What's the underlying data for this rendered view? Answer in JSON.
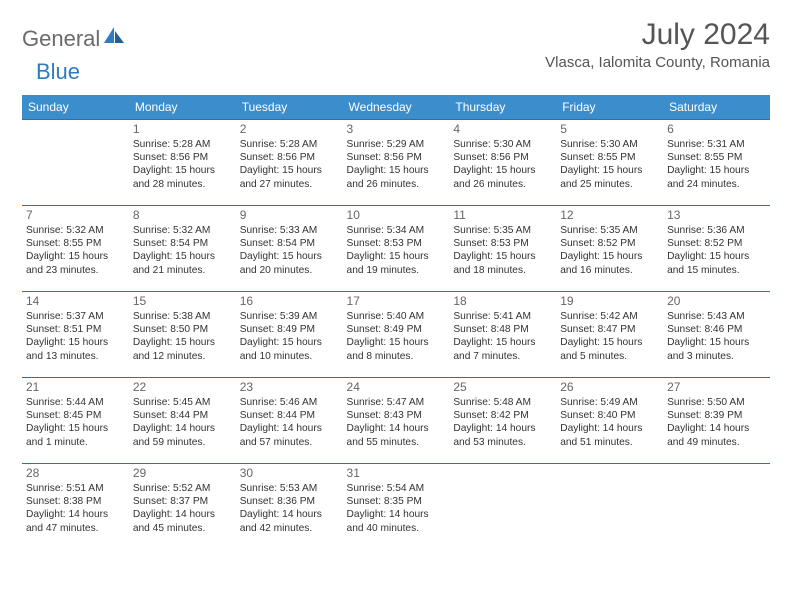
{
  "logo": {
    "general": "General",
    "blue": "Blue"
  },
  "title": "July 2024",
  "location": "Vlasca, Ialomita County, Romania",
  "colors": {
    "header_bg": "#3c8dcc",
    "header_text": "#ffffff",
    "border": "#2f6fa6",
    "logo_gray": "#6a6a6a",
    "logo_blue": "#2f7bbf",
    "text": "#333333",
    "daynum": "#666666",
    "title_text": "#555555"
  },
  "weekdays": [
    "Sunday",
    "Monday",
    "Tuesday",
    "Wednesday",
    "Thursday",
    "Friday",
    "Saturday"
  ],
  "weeks": [
    [
      null,
      {
        "n": "1",
        "sr": "5:28 AM",
        "ss": "8:56 PM",
        "dl": "15 hours and 28 minutes."
      },
      {
        "n": "2",
        "sr": "5:28 AM",
        "ss": "8:56 PM",
        "dl": "15 hours and 27 minutes."
      },
      {
        "n": "3",
        "sr": "5:29 AM",
        "ss": "8:56 PM",
        "dl": "15 hours and 26 minutes."
      },
      {
        "n": "4",
        "sr": "5:30 AM",
        "ss": "8:56 PM",
        "dl": "15 hours and 26 minutes."
      },
      {
        "n": "5",
        "sr": "5:30 AM",
        "ss": "8:55 PM",
        "dl": "15 hours and 25 minutes."
      },
      {
        "n": "6",
        "sr": "5:31 AM",
        "ss": "8:55 PM",
        "dl": "15 hours and 24 minutes."
      }
    ],
    [
      {
        "n": "7",
        "sr": "5:32 AM",
        "ss": "8:55 PM",
        "dl": "15 hours and 23 minutes."
      },
      {
        "n": "8",
        "sr": "5:32 AM",
        "ss": "8:54 PM",
        "dl": "15 hours and 21 minutes."
      },
      {
        "n": "9",
        "sr": "5:33 AM",
        "ss": "8:54 PM",
        "dl": "15 hours and 20 minutes."
      },
      {
        "n": "10",
        "sr": "5:34 AM",
        "ss": "8:53 PM",
        "dl": "15 hours and 19 minutes."
      },
      {
        "n": "11",
        "sr": "5:35 AM",
        "ss": "8:53 PM",
        "dl": "15 hours and 18 minutes."
      },
      {
        "n": "12",
        "sr": "5:35 AM",
        "ss": "8:52 PM",
        "dl": "15 hours and 16 minutes."
      },
      {
        "n": "13",
        "sr": "5:36 AM",
        "ss": "8:52 PM",
        "dl": "15 hours and 15 minutes."
      }
    ],
    [
      {
        "n": "14",
        "sr": "5:37 AM",
        "ss": "8:51 PM",
        "dl": "15 hours and 13 minutes."
      },
      {
        "n": "15",
        "sr": "5:38 AM",
        "ss": "8:50 PM",
        "dl": "15 hours and 12 minutes."
      },
      {
        "n": "16",
        "sr": "5:39 AM",
        "ss": "8:49 PM",
        "dl": "15 hours and 10 minutes."
      },
      {
        "n": "17",
        "sr": "5:40 AM",
        "ss": "8:49 PM",
        "dl": "15 hours and 8 minutes."
      },
      {
        "n": "18",
        "sr": "5:41 AM",
        "ss": "8:48 PM",
        "dl": "15 hours and 7 minutes."
      },
      {
        "n": "19",
        "sr": "5:42 AM",
        "ss": "8:47 PM",
        "dl": "15 hours and 5 minutes."
      },
      {
        "n": "20",
        "sr": "5:43 AM",
        "ss": "8:46 PM",
        "dl": "15 hours and 3 minutes."
      }
    ],
    [
      {
        "n": "21",
        "sr": "5:44 AM",
        "ss": "8:45 PM",
        "dl": "15 hours and 1 minute."
      },
      {
        "n": "22",
        "sr": "5:45 AM",
        "ss": "8:44 PM",
        "dl": "14 hours and 59 minutes."
      },
      {
        "n": "23",
        "sr": "5:46 AM",
        "ss": "8:44 PM",
        "dl": "14 hours and 57 minutes."
      },
      {
        "n": "24",
        "sr": "5:47 AM",
        "ss": "8:43 PM",
        "dl": "14 hours and 55 minutes."
      },
      {
        "n": "25",
        "sr": "5:48 AM",
        "ss": "8:42 PM",
        "dl": "14 hours and 53 minutes."
      },
      {
        "n": "26",
        "sr": "5:49 AM",
        "ss": "8:40 PM",
        "dl": "14 hours and 51 minutes."
      },
      {
        "n": "27",
        "sr": "5:50 AM",
        "ss": "8:39 PM",
        "dl": "14 hours and 49 minutes."
      }
    ],
    [
      {
        "n": "28",
        "sr": "5:51 AM",
        "ss": "8:38 PM",
        "dl": "14 hours and 47 minutes."
      },
      {
        "n": "29",
        "sr": "5:52 AM",
        "ss": "8:37 PM",
        "dl": "14 hours and 45 minutes."
      },
      {
        "n": "30",
        "sr": "5:53 AM",
        "ss": "8:36 PM",
        "dl": "14 hours and 42 minutes."
      },
      {
        "n": "31",
        "sr": "5:54 AM",
        "ss": "8:35 PM",
        "dl": "14 hours and 40 minutes."
      },
      null,
      null,
      null
    ]
  ],
  "labels": {
    "sunrise": "Sunrise: ",
    "sunset": "Sunset: ",
    "daylight": "Daylight: "
  }
}
